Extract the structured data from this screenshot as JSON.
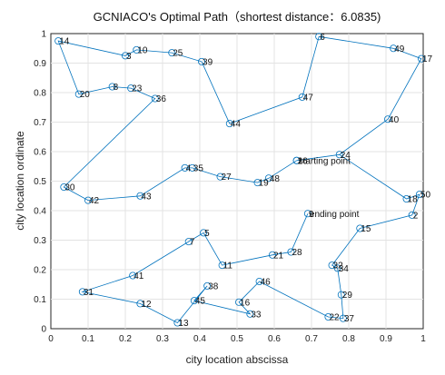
{
  "chart_data": {
    "type": "line",
    "title": "GCNIACO's Optimal Path（shortest distance：6.0835)",
    "xlabel": "city location abscissa",
    "ylabel": "city location ordinate",
    "xlim": [
      0,
      1
    ],
    "ylim": [
      0,
      1
    ],
    "xticks": [
      "0",
      "0.1",
      "0.2",
      "0.3",
      "0.4",
      "0.5",
      "0.6",
      "0.7",
      "0.8",
      "0.9",
      "1"
    ],
    "yticks": [
      "0",
      "0.1",
      "0.2",
      "0.3",
      "0.4",
      "0.5",
      "0.6",
      "0.7",
      "0.8",
      "0.9",
      "1"
    ],
    "grid": true,
    "series_color": "#0072BD",
    "cities": [
      {
        "id": "1",
        "x": 0.66,
        "y": 0.57
      },
      {
        "id": "2",
        "x": 0.97,
        "y": 0.385
      },
      {
        "id": "3",
        "x": 0.2,
        "y": 0.925
      },
      {
        "id": "4",
        "x": 0.36,
        "y": 0.545
      },
      {
        "id": "5",
        "x": 0.41,
        "y": 0.325
      },
      {
        "id": "6",
        "x": 0.72,
        "y": 0.99
      },
      {
        "id": "7",
        "x": 0.37,
        "y": 0.295
      },
      {
        "id": "8",
        "x": 0.165,
        "y": 0.82
      },
      {
        "id": "9",
        "x": 0.69,
        "y": 0.39
      },
      {
        "id": "10",
        "x": 0.23,
        "y": 0.945
      },
      {
        "id": "11",
        "x": 0.46,
        "y": 0.215
      },
      {
        "id": "12",
        "x": 0.24,
        "y": 0.085
      },
      {
        "id": "13",
        "x": 0.34,
        "y": 0.02
      },
      {
        "id": "14",
        "x": 0.02,
        "y": 0.975
      },
      {
        "id": "15",
        "x": 0.83,
        "y": 0.34
      },
      {
        "id": "16",
        "x": 0.505,
        "y": 0.09
      },
      {
        "id": "17",
        "x": 0.995,
        "y": 0.915
      },
      {
        "id": "18",
        "x": 0.955,
        "y": 0.44
      },
      {
        "id": "19",
        "x": 0.555,
        "y": 0.495
      },
      {
        "id": "20",
        "x": 0.075,
        "y": 0.795
      },
      {
        "id": "21",
        "x": 0.595,
        "y": 0.25
      },
      {
        "id": "22",
        "x": 0.745,
        "y": 0.04
      },
      {
        "id": "23",
        "x": 0.215,
        "y": 0.815
      },
      {
        "id": "24",
        "x": 0.775,
        "y": 0.59
      },
      {
        "id": "25",
        "x": 0.325,
        "y": 0.935
      },
      {
        "id": "26",
        "x": 0.66,
        "y": 0.57
      },
      {
        "id": "27",
        "x": 0.455,
        "y": 0.515
      },
      {
        "id": "28",
        "x": 0.645,
        "y": 0.26
      },
      {
        "id": "29",
        "x": 0.78,
        "y": 0.115
      },
      {
        "id": "30",
        "x": 0.035,
        "y": 0.48
      },
      {
        "id": "31",
        "x": 0.085,
        "y": 0.125
      },
      {
        "id": "32",
        "x": 0.755,
        "y": 0.215
      },
      {
        "id": "33",
        "x": 0.535,
        "y": 0.05
      },
      {
        "id": "34",
        "x": 0.77,
        "y": 0.205
      },
      {
        "id": "35",
        "x": 0.38,
        "y": 0.545
      },
      {
        "id": "36",
        "x": 0.28,
        "y": 0.78
      },
      {
        "id": "37",
        "x": 0.785,
        "y": 0.035
      },
      {
        "id": "38",
        "x": 0.42,
        "y": 0.145
      },
      {
        "id": "39",
        "x": 0.405,
        "y": 0.905
      },
      {
        "id": "40",
        "x": 0.905,
        "y": 0.71
      },
      {
        "id": "41",
        "x": 0.22,
        "y": 0.18
      },
      {
        "id": "42",
        "x": 0.1,
        "y": 0.435
      },
      {
        "id": "43",
        "x": 0.24,
        "y": 0.45
      },
      {
        "id": "44",
        "x": 0.48,
        "y": 0.695
      },
      {
        "id": "45",
        "x": 0.385,
        "y": 0.095
      },
      {
        "id": "46",
        "x": 0.56,
        "y": 0.16
      },
      {
        "id": "47",
        "x": 0.675,
        "y": 0.785
      },
      {
        "id": "48",
        "x": 0.585,
        "y": 0.51
      },
      {
        "id": "49",
        "x": 0.92,
        "y": 0.95
      },
      {
        "id": "50",
        "x": 0.99,
        "y": 0.455
      }
    ],
    "route": [
      "26",
      "24",
      "18",
      "50",
      "2",
      "15",
      "32",
      "34",
      "29",
      "37",
      "22",
      "46",
      "16",
      "33",
      "45",
      "38",
      "13",
      "12",
      "31",
      "41",
      "7",
      "5",
      "11",
      "21",
      "28",
      "9"
    ],
    "route_closed_path": [
      "26",
      "48",
      "19",
      "27",
      "35",
      "4",
      "43",
      "42",
      "30",
      "36",
      "23",
      "8",
      "20",
      "14",
      "3",
      "10",
      "25",
      "39",
      "44",
      "47",
      "6",
      "49",
      "17",
      "40",
      "24"
    ],
    "annotations": [
      {
        "text": "starting point",
        "at": "1"
      },
      {
        "text": "ending point",
        "at": "9"
      }
    ]
  }
}
